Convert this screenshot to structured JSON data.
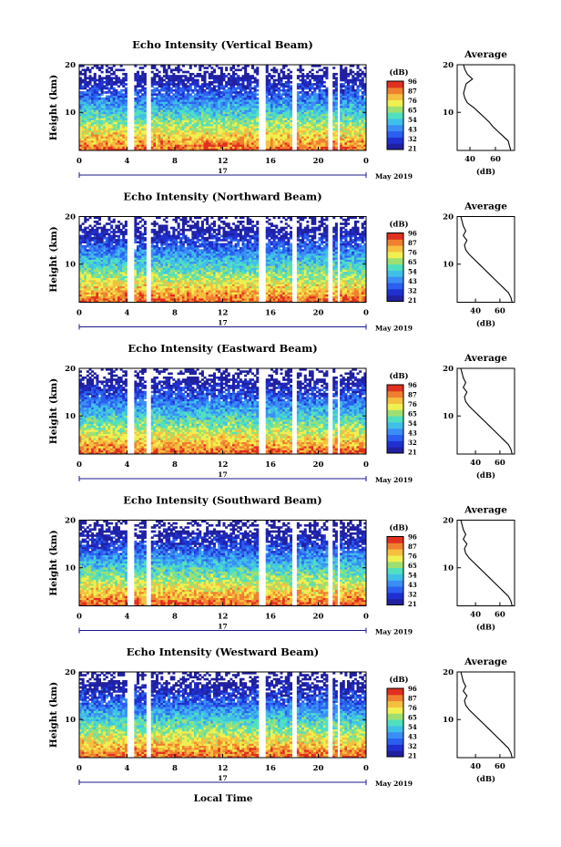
{
  "figure": {
    "xlabel": "Local Time",
    "date_label": "May 2019",
    "day_label": "17",
    "ylabel": "Height (km)",
    "colorbar_unit": "(dB)",
    "colorbar_ticks": [
      "96",
      "87",
      "76",
      "65",
      "54",
      "43",
      "32",
      "21"
    ],
    "colors": [
      "#2020a0",
      "#2030d0",
      "#2a5ff0",
      "#3a8ef5",
      "#40c0e8",
      "#50e0c0",
      "#9ee070",
      "#f0f050",
      "#f5c040",
      "#f08030",
      "#e03020"
    ]
  },
  "chart_data": [
    {
      "type": "heatmap",
      "title": "Echo Intensity (Vertical Beam)",
      "x_ticks": [
        "0",
        "4",
        "8",
        "12",
        "16",
        "20",
        "0"
      ],
      "y_ticks": [
        "20",
        "10"
      ],
      "xlim": [
        0,
        24
      ],
      "ylim": [
        2,
        20
      ],
      "gaps_hours": [
        [
          4.1,
          4.5
        ],
        [
          5.6,
          5.9
        ],
        [
          15.1,
          15.5
        ],
        [
          17.9,
          18.2
        ],
        [
          20.9,
          21.1
        ],
        [
          21.6,
          21.8
        ]
      ],
      "colorbar_range_db": [
        21,
        96
      ],
      "profile": {
        "title": "Average",
        "xlabel": "(dB)",
        "x_ticks": [
          "40",
          "60"
        ],
        "y_ticks": [
          "20",
          "10"
        ],
        "xlim": [
          30,
          75
        ],
        "heights_km": [
          2,
          3,
          4,
          5,
          6,
          7,
          8,
          9,
          10,
          11,
          12,
          13,
          14,
          15,
          16,
          17,
          18,
          19,
          20
        ],
        "db": [
          72,
          71,
          70,
          66,
          62,
          58,
          55,
          51,
          47,
          43,
          38,
          36,
          35,
          36,
          37,
          42,
          38,
          36,
          35
        ]
      }
    },
    {
      "type": "heatmap",
      "title": "Echo Intensity (Northward Beam)",
      "x_ticks": [
        "0",
        "4",
        "8",
        "12",
        "16",
        "20",
        "0"
      ],
      "y_ticks": [
        "20",
        "10"
      ],
      "xlim": [
        0,
        24
      ],
      "ylim": [
        2,
        20
      ],
      "gaps_hours": [
        [
          4.1,
          4.5
        ],
        [
          5.6,
          5.9
        ],
        [
          15.1,
          15.5
        ],
        [
          17.9,
          18.2
        ],
        [
          20.9,
          21.1
        ],
        [
          21.6,
          21.8
        ]
      ],
      "colorbar_range_db": [
        21,
        96
      ],
      "profile": {
        "title": "Average",
        "xlabel": "(dB)",
        "x_ticks": [
          "40",
          "60"
        ],
        "y_ticks": [
          "20",
          "10"
        ],
        "xlim": [
          25,
          72
        ],
        "heights_km": [
          2,
          3,
          4,
          5,
          6,
          7,
          8,
          9,
          10,
          11,
          12,
          13,
          14,
          15,
          16,
          17,
          18,
          19,
          20
        ],
        "db": [
          70,
          69,
          67,
          63,
          59,
          55,
          51,
          47,
          43,
          39,
          35,
          32,
          31,
          33,
          30,
          32,
          30,
          29,
          28
        ]
      }
    },
    {
      "type": "heatmap",
      "title": "Echo Intensity (Eastward Beam)",
      "x_ticks": [
        "0",
        "4",
        "8",
        "12",
        "16",
        "20",
        "0"
      ],
      "y_ticks": [
        "20",
        "10"
      ],
      "xlim": [
        0,
        24
      ],
      "ylim": [
        2,
        20
      ],
      "gaps_hours": [
        [
          4.1,
          4.5
        ],
        [
          5.6,
          5.9
        ],
        [
          15.1,
          15.5
        ],
        [
          17.9,
          18.2
        ],
        [
          20.9,
          21.1
        ],
        [
          21.6,
          21.8
        ]
      ],
      "colorbar_range_db": [
        21,
        96
      ],
      "profile": {
        "title": "Average",
        "xlabel": "(dB)",
        "x_ticks": [
          "40",
          "60"
        ],
        "y_ticks": [
          "20",
          "10"
        ],
        "xlim": [
          25,
          72
        ],
        "heights_km": [
          2,
          3,
          4,
          5,
          6,
          7,
          8,
          9,
          10,
          11,
          12,
          13,
          14,
          15,
          16,
          17,
          18,
          19,
          20
        ],
        "db": [
          70,
          69,
          67,
          63,
          59,
          55,
          51,
          47,
          43,
          39,
          35,
          32,
          31,
          33,
          30,
          32,
          30,
          29,
          28
        ]
      }
    },
    {
      "type": "heatmap",
      "title": "Echo Intensity (Southward Beam)",
      "x_ticks": [
        "0",
        "4",
        "8",
        "12",
        "16",
        "20",
        "0"
      ],
      "y_ticks": [
        "20",
        "10"
      ],
      "xlim": [
        0,
        24
      ],
      "ylim": [
        2,
        20
      ],
      "gaps_hours": [
        [
          4.1,
          4.5
        ],
        [
          5.6,
          5.9
        ],
        [
          15.1,
          15.5
        ],
        [
          17.9,
          18.2
        ],
        [
          20.9,
          21.1
        ],
        [
          21.6,
          21.8
        ]
      ],
      "colorbar_range_db": [
        21,
        96
      ],
      "profile": {
        "title": "Average",
        "xlabel": "(dB)",
        "x_ticks": [
          "40",
          "60"
        ],
        "y_ticks": [
          "20",
          "10"
        ],
        "xlim": [
          25,
          72
        ],
        "heights_km": [
          2,
          3,
          4,
          5,
          6,
          7,
          8,
          9,
          10,
          11,
          12,
          13,
          14,
          15,
          16,
          17,
          18,
          19,
          20
        ],
        "db": [
          70,
          69,
          67,
          63,
          59,
          55,
          51,
          47,
          43,
          39,
          35,
          32,
          31,
          33,
          30,
          32,
          30,
          29,
          28
        ]
      }
    },
    {
      "type": "heatmap",
      "title": "Echo Intensity (Westward Beam)",
      "x_ticks": [
        "0",
        "4",
        "8",
        "12",
        "16",
        "20",
        "0"
      ],
      "y_ticks": [
        "20",
        "10"
      ],
      "xlim": [
        0,
        24
      ],
      "ylim": [
        2,
        20
      ],
      "gaps_hours": [
        [
          4.1,
          4.5
        ],
        [
          5.6,
          5.9
        ],
        [
          15.1,
          15.5
        ],
        [
          17.9,
          18.2
        ],
        [
          20.9,
          21.1
        ],
        [
          21.6,
          21.8
        ]
      ],
      "colorbar_range_db": [
        21,
        96
      ],
      "profile": {
        "title": "Average",
        "xlabel": "(dB)",
        "x_ticks": [
          "40",
          "60"
        ],
        "y_ticks": [
          "20",
          "10"
        ],
        "xlim": [
          25,
          72
        ],
        "heights_km": [
          2,
          3,
          4,
          5,
          6,
          7,
          8,
          9,
          10,
          11,
          12,
          13,
          14,
          15,
          16,
          17,
          18,
          19,
          20
        ],
        "db": [
          70,
          69,
          67,
          63,
          59,
          55,
          51,
          47,
          43,
          39,
          35,
          32,
          31,
          33,
          30,
          32,
          30,
          29,
          28
        ]
      }
    }
  ]
}
